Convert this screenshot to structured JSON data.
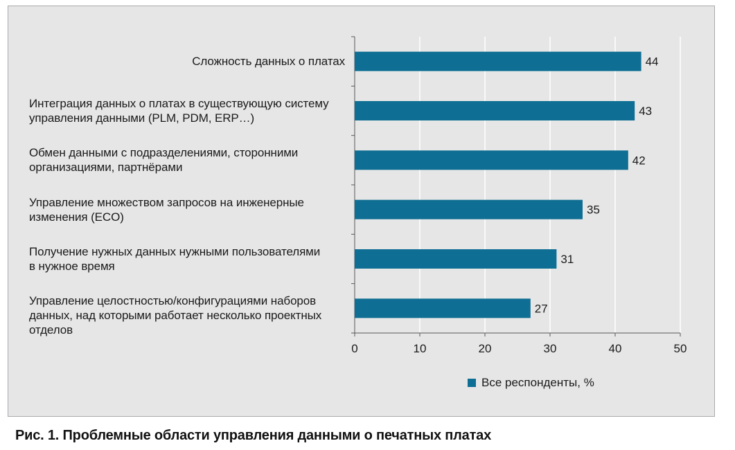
{
  "chart_data": {
    "type": "bar",
    "orientation": "horizontal",
    "categories": [
      "Сложность данных о платах",
      "Интеграция данных о платах в существующую систему управления данными (PLM, PDM, ERP…)",
      "Обмен данными с подразделениями, сторонними организациями, партнёрами",
      "Управление множеством запросов на инженерные изменения (ECO)",
      "Получение нужных данных нужными пользователями в нужное время",
      "Управление целостностью/конфигурациями наборов данных, над которыми работает несколько проектных отделов"
    ],
    "category_lines": [
      [
        "Сложность данных о платах"
      ],
      [
        "Интеграция данных о платах в существующую систему",
        "управления данными (PLM, PDM, ERP…)"
      ],
      [
        "Обмен данными с подразделениями, сторонними",
        "организациями, партнёрами"
      ],
      [
        "Управление множеством запросов на инженерные",
        "изменения (ECO)"
      ],
      [
        "Получение нужных данных нужными пользователями",
        "в нужное время"
      ],
      [
        "Управление целостностью/конфигурациями наборов",
        "данных, над которыми работает несколько проектных",
        "отделов"
      ]
    ],
    "series": [
      {
        "name": "Все респонденты, %",
        "values": [
          44,
          43,
          42,
          35,
          31,
          27
        ],
        "color": "#0e6e93"
      }
    ],
    "xlim": [
      0,
      50
    ],
    "xticks": [
      0,
      10,
      20,
      30,
      40,
      50
    ],
    "grid": true,
    "legend_position": "bottom",
    "background": "#e6e6e7"
  },
  "caption": "Рис. 1. Проблемные области управления данными о печатных платах"
}
